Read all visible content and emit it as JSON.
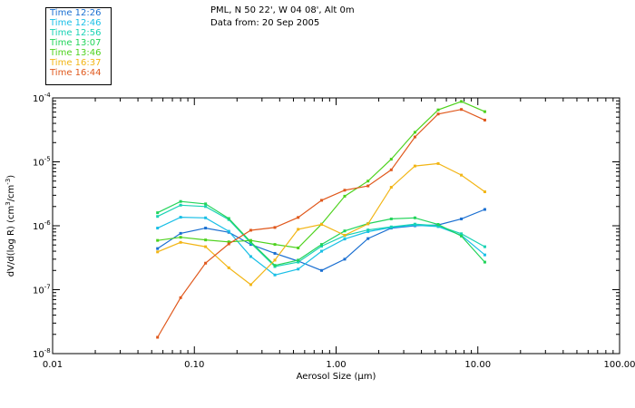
{
  "header": {
    "line1": "PML, N 50 22', W 04 08', Alt 0m",
    "line2": "Data from: 20 Sep 2005"
  },
  "chart_data": {
    "type": "line",
    "x_scale": "log",
    "y_scale": "log",
    "xlim": [
      0.01,
      100
    ],
    "ylim": [
      1e-08,
      0.0001
    ],
    "xlabel": "Aerosol Size (μm)",
    "ylabel_parts": [
      "dV/d(log R) (cm",
      "3",
      "/cm",
      "-3",
      ")"
    ],
    "x_ticks": [
      {
        "value": 0.01,
        "label": "0.01"
      },
      {
        "value": 0.1,
        "label": "0.10"
      },
      {
        "value": 1,
        "label": "1.00"
      },
      {
        "value": 10,
        "label": "10.00"
      },
      {
        "value": 100,
        "label": "100.00"
      }
    ],
    "y_ticks": [
      {
        "value": 1e-08,
        "base": "10",
        "exp": "-8"
      },
      {
        "value": 1e-07,
        "base": "10",
        "exp": "-7"
      },
      {
        "value": 1e-06,
        "base": "10",
        "exp": "-6"
      },
      {
        "value": 1e-05,
        "base": "10",
        "exp": "-5"
      },
      {
        "value": 0.0001,
        "base": "10",
        "exp": "-4"
      }
    ],
    "grid": false,
    "legend_position": "top-left",
    "x": [
      0.055,
      0.08,
      0.12,
      0.175,
      0.25,
      0.37,
      0.54,
      0.79,
      1.15,
      1.68,
      2.45,
      3.6,
      5.25,
      7.65,
      11.2
    ],
    "series": [
      {
        "name": "Time 12:26",
        "color": "#1a6fd1",
        "values": [
          4.4e-07,
          7.6e-07,
          9.2e-07,
          7.9e-07,
          5.1e-07,
          3.7e-07,
          2.8e-07,
          2e-07,
          3e-07,
          6.3e-07,
          9.2e-07,
          1e-06,
          1.03e-06,
          1.28e-06,
          1.8e-06
        ]
      },
      {
        "name": "Time 12:46",
        "color": "#19bfe6",
        "values": [
          9.2e-07,
          1.36e-06,
          1.33e-06,
          8.2e-07,
          3.3e-07,
          1.7e-07,
          2.1e-07,
          4e-07,
          6.2e-07,
          8.1e-07,
          9.4e-07,
          1.02e-06,
          9.7e-07,
          7.1e-07,
          3.5e-07
        ]
      },
      {
        "name": "Time 12:56",
        "color": "#19d2b4",
        "values": [
          1.4e-06,
          2.1e-06,
          2e-06,
          1.25e-06,
          5.4e-07,
          2.3e-07,
          2.7e-07,
          4.8e-07,
          7e-07,
          8.6e-07,
          9.6e-07,
          1.06e-06,
          1e-06,
          7.5e-07,
          4.7e-07
        ]
      },
      {
        "name": "Time 13:07",
        "color": "#22d45a",
        "values": [
          1.6e-06,
          2.4e-06,
          2.2e-06,
          1.3e-06,
          5.6e-07,
          2.4e-07,
          2.9e-07,
          5.1e-07,
          8.3e-07,
          1.08e-06,
          1.28e-06,
          1.33e-06,
          1.05e-06,
          6.9e-07,
          2.7e-07
        ]
      },
      {
        "name": "Time 13:46",
        "color": "#4ed21e",
        "values": [
          5.9e-07,
          6.6e-07,
          6e-07,
          5.6e-07,
          5.9e-07,
          5.1e-07,
          4.5e-07,
          1.06e-06,
          2.9e-06,
          5e-06,
          1.1e-05,
          2.9e-05,
          6.5e-05,
          8.8e-05,
          6.1e-05
        ]
      },
      {
        "name": "Time 16:37",
        "color": "#f2b515",
        "values": [
          3.9e-07,
          5.5e-07,
          4.7e-07,
          2.2e-07,
          1.2e-07,
          2.9e-07,
          8.8e-07,
          1.05e-06,
          7.1e-07,
          1.07e-06,
          4e-06,
          8.6e-06,
          9.4e-06,
          6.2e-06,
          3.4e-06
        ]
      },
      {
        "name": "Time 16:44",
        "color": "#e0581c",
        "values": [
          1.8e-08,
          7.5e-08,
          2.6e-07,
          5.2e-07,
          8.5e-07,
          9.4e-07,
          1.35e-06,
          2.5e-06,
          3.6e-06,
          4.2e-06,
          7.5e-06,
          2.45e-05,
          5.6e-05,
          6.6e-05,
          4.5e-05
        ]
      }
    ]
  }
}
